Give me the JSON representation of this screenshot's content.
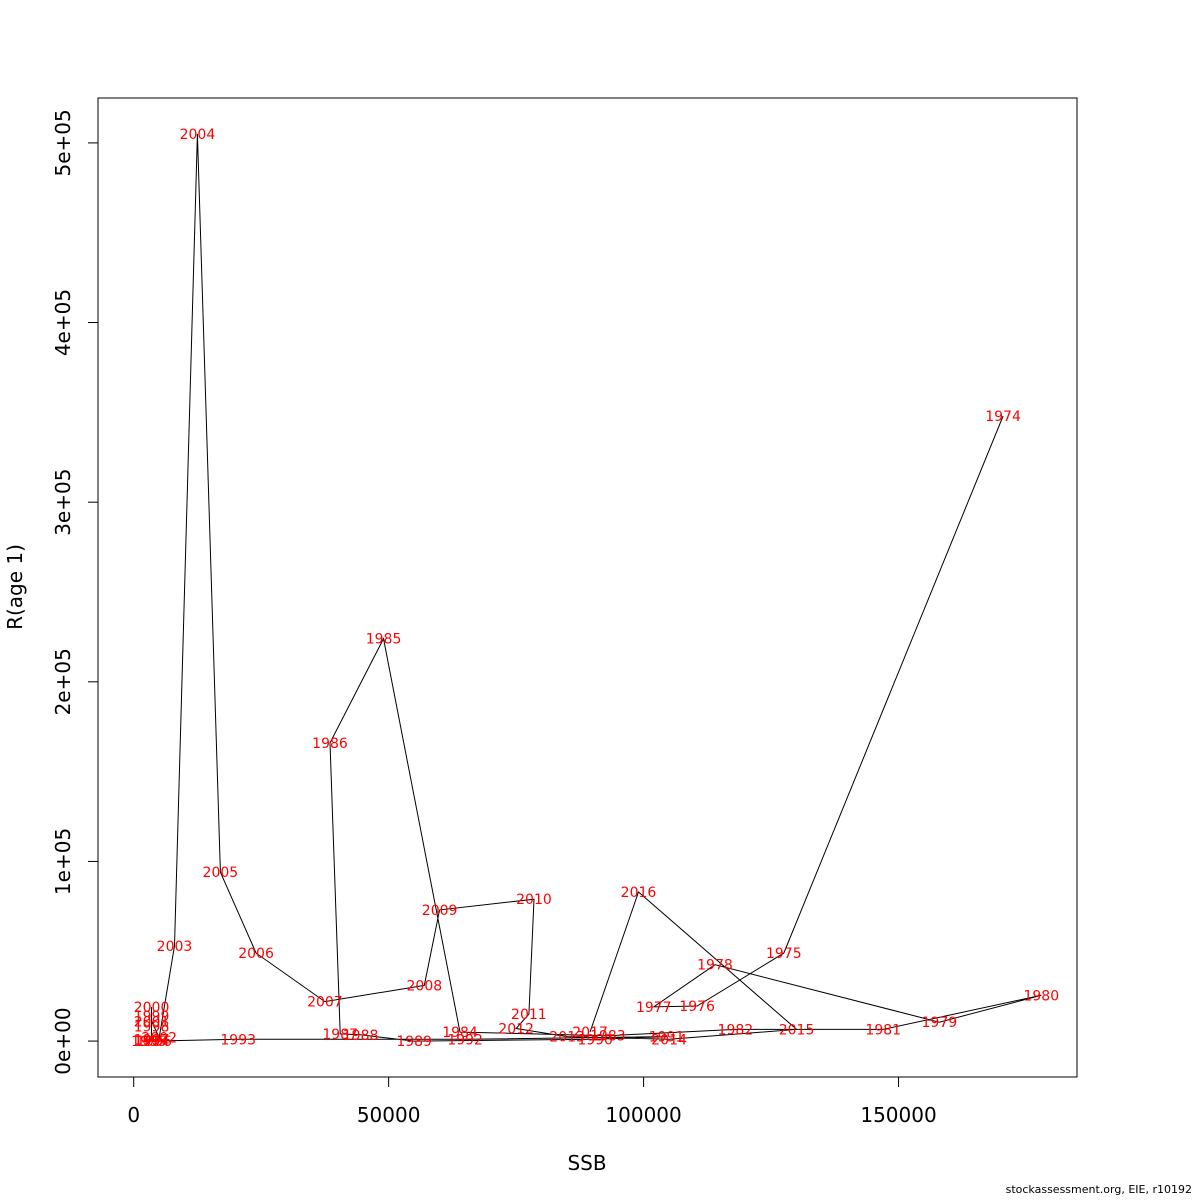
{
  "chart_data": {
    "type": "line",
    "xlabel": "SSB",
    "ylabel": "R(age 1)",
    "xlim": [
      -7000,
      185000
    ],
    "ylim": [
      -20000,
      525000
    ],
    "x_ticks": [
      0,
      50000,
      100000,
      150000
    ],
    "x_tick_labels": [
      "0",
      "50000",
      "100000",
      "150000"
    ],
    "y_ticks": [
      0,
      100000,
      200000,
      300000,
      400000,
      500000
    ],
    "y_tick_labels": [
      "0e+00",
      "1e+05",
      "2e+05",
      "3e+05",
      "4e+05",
      "5e+05"
    ],
    "grid": false,
    "line_color": "#000000",
    "label_color": "#ff0000",
    "points": [
      {
        "label": "1974",
        "x": 170500,
        "y": 348000
      },
      {
        "label": "1975",
        "x": 127500,
        "y": 49000
      },
      {
        "label": "1976",
        "x": 110500,
        "y": 19500
      },
      {
        "label": "1977",
        "x": 102000,
        "y": 19000
      },
      {
        "label": "1978",
        "x": 114000,
        "y": 42500
      },
      {
        "label": "1979",
        "x": 158000,
        "y": 10500
      },
      {
        "label": "1980",
        "x": 178000,
        "y": 25500
      },
      {
        "label": "1981",
        "x": 147000,
        "y": 6500
      },
      {
        "label": "1982",
        "x": 118000,
        "y": 6500
      },
      {
        "label": "1983",
        "x": 93000,
        "y": 3000
      },
      {
        "label": "1984",
        "x": 64000,
        "y": 5000
      },
      {
        "label": "1985",
        "x": 49000,
        "y": 224000
      },
      {
        "label": "1986",
        "x": 38500,
        "y": 166000
      },
      {
        "label": "1987",
        "x": 40500,
        "y": 4000
      },
      {
        "label": "1988",
        "x": 44500,
        "y": 3500
      },
      {
        "label": "1989",
        "x": 55000,
        "y": 0
      },
      {
        "label": "1990",
        "x": 90500,
        "y": 1000
      },
      {
        "label": "1991",
        "x": 104500,
        "y": 2500
      },
      {
        "label": "1992",
        "x": 65000,
        "y": 1000
      },
      {
        "label": "1993",
        "x": 20500,
        "y": 1000
      },
      {
        "label": "1994",
        "x": 3500,
        "y": 0
      },
      {
        "label": "1995",
        "x": 3000,
        "y": 0
      },
      {
        "label": "1996",
        "x": 4000,
        "y": 0
      },
      {
        "label": "1997",
        "x": 3500,
        "y": 1000
      },
      {
        "label": "1998",
        "x": 3500,
        "y": 8000
      },
      {
        "label": "1999",
        "x": 3500,
        "y": 14000
      },
      {
        "label": "2000",
        "x": 3500,
        "y": 19000
      },
      {
        "label": "2001",
        "x": 3500,
        "y": 11000
      },
      {
        "label": "2002",
        "x": 5000,
        "y": 2000
      },
      {
        "label": "2003",
        "x": 8000,
        "y": 53000
      },
      {
        "label": "2004",
        "x": 12500,
        "y": 505000
      },
      {
        "label": "2005",
        "x": 17000,
        "y": 94000
      },
      {
        "label": "2006",
        "x": 24000,
        "y": 49000
      },
      {
        "label": "2007",
        "x": 37500,
        "y": 22000
      },
      {
        "label": "2008",
        "x": 57000,
        "y": 31000
      },
      {
        "label": "2009",
        "x": 60000,
        "y": 73000
      },
      {
        "label": "2010",
        "x": 78500,
        "y": 79000
      },
      {
        "label": "2011",
        "x": 77500,
        "y": 15000
      },
      {
        "label": "2012",
        "x": 75000,
        "y": 7000
      },
      {
        "label": "2013",
        "x": 85000,
        "y": 2500
      },
      {
        "label": "2014",
        "x": 105000,
        "y": 1000
      },
      {
        "label": "2015",
        "x": 130000,
        "y": 6500
      },
      {
        "label": "2016",
        "x": 99000,
        "y": 83000
      },
      {
        "label": "2017",
        "x": 89500,
        "y": 5000
      }
    ]
  },
  "footer": {
    "credit": "stockassessment.org, EIE, r10192"
  }
}
